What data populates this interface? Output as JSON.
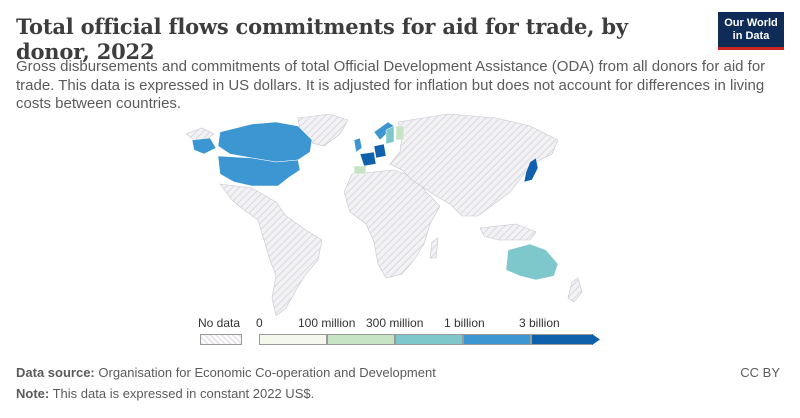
{
  "header": {
    "title": "Total official flows commitments for aid for trade, by donor, 2022",
    "subtitle": "Gross disbursements and commitments of total Official Development Assistance (ODA) from all donors for aid for trade. This data is expressed in US dollars. It is adjusted for inflation but does not account for differences in living costs between countries."
  },
  "logo": {
    "line1": "Our World",
    "line2": "in Data",
    "bg": "#0f2c59",
    "accent": "#ce261e"
  },
  "legend": {
    "no_data_label": "No data",
    "ticks": [
      "0",
      "100 million",
      "300 million",
      "1 billion",
      "3 billion"
    ],
    "bin_colors": [
      "#f4f8ec",
      "#c7e5c4",
      "#7ec8cb",
      "#3c96d2",
      "#0f61ab"
    ],
    "no_data_color": "#e8e6ec"
  },
  "map": {
    "country_values": [
      {
        "country": "United States",
        "bin": 4
      },
      {
        "country": "Canada",
        "bin": 4
      },
      {
        "country": "Japan",
        "bin": 5
      },
      {
        "country": "France",
        "bin": 5
      },
      {
        "country": "Germany",
        "bin": 5
      },
      {
        "country": "United Kingdom",
        "bin": 4
      },
      {
        "country": "Australia",
        "bin": 3
      },
      {
        "country": "Norway",
        "bin": 4
      },
      {
        "country": "Sweden",
        "bin": 3
      },
      {
        "country": "Spain",
        "bin": 2
      },
      {
        "country": "Finland",
        "bin": 2
      }
    ]
  },
  "footer": {
    "source_label": "Data source:",
    "source_text": "Organisation for Economic Co-operation and Development",
    "note_label": "Note:",
    "note_text": "This data is expressed in constant 2022 US$.",
    "license": "CC BY"
  }
}
